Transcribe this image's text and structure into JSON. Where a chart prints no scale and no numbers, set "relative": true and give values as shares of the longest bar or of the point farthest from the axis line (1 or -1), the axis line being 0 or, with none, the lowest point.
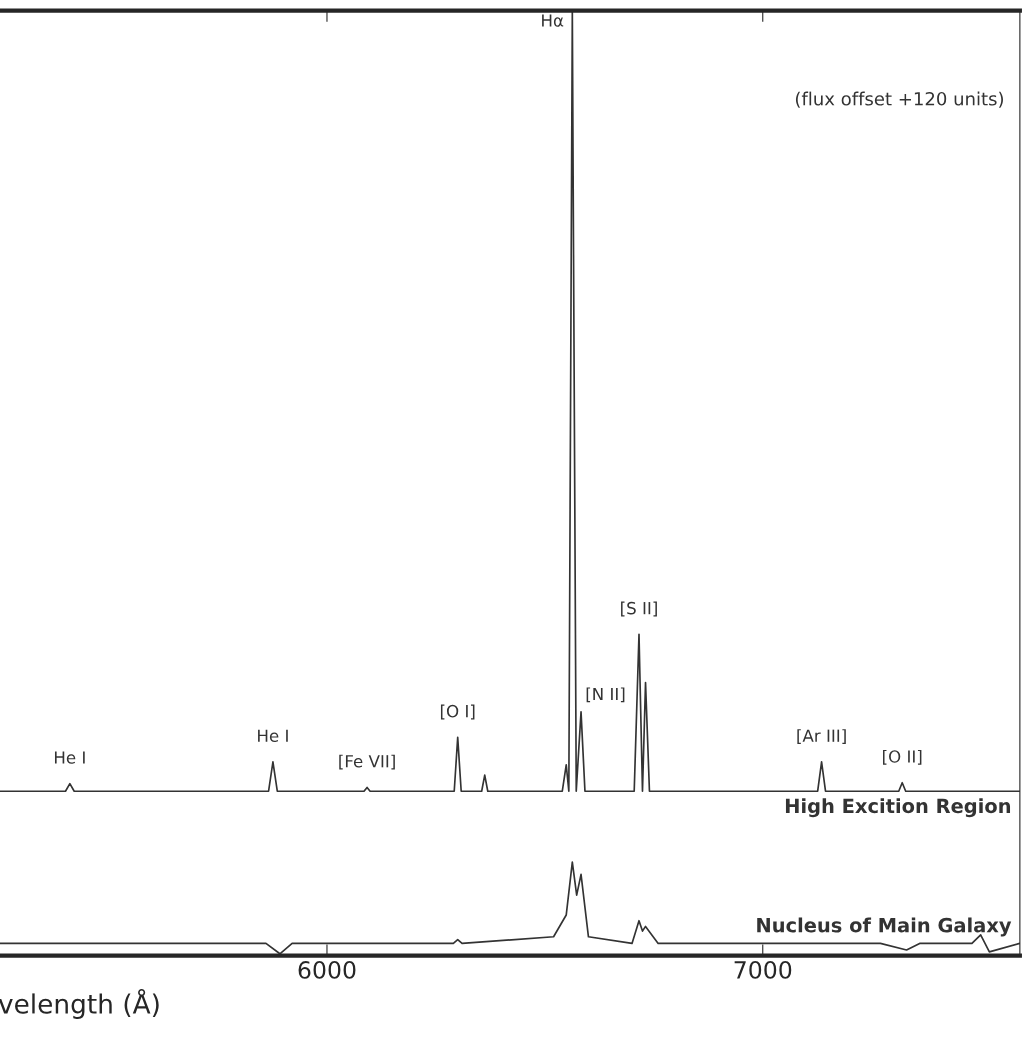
{
  "chart_data": {
    "type": "line",
    "relative": true,
    "xlabel": "velength (Å)",
    "xlim": [
      5245,
      7590
    ],
    "xticks": [
      6000,
      7000
    ],
    "grid": false,
    "legend": false,
    "line_style": "solid",
    "marker": "none",
    "series": [
      {
        "name": "High Excition Region",
        "color": "#333333",
        "x": [
          5245,
          5400,
          5410,
          5420,
          5700,
          5866,
          5876,
          5886,
          6085,
          6092,
          6099,
          6292,
          6300,
          6308,
          6355,
          6362,
          6369,
          6540,
          6549,
          6555,
          6563,
          6572,
          6583,
          6592,
          6705,
          6716,
          6724,
          6731,
          6740,
          7126,
          7135,
          7144,
          7312,
          7320,
          7328,
          7590
        ],
        "values": [
          0.174,
          0.174,
          0.182,
          0.174,
          0.174,
          0.174,
          0.205,
          0.174,
          0.174,
          0.178,
          0.174,
          0.174,
          0.231,
          0.174,
          0.174,
          0.191,
          0.174,
          0.174,
          0.202,
          0.174,
          1.0,
          0.174,
          0.258,
          0.174,
          0.174,
          0.34,
          0.174,
          0.289,
          0.174,
          0.174,
          0.205,
          0.174,
          0.174,
          0.183,
          0.174,
          0.174
        ]
      },
      {
        "name": "Nucleus of Main Galaxy",
        "color": "#333333",
        "x": [
          5245,
          5860,
          5892,
          5920,
          6290,
          6300,
          6310,
          6520,
          6549,
          6563,
          6573,
          6583,
          6600,
          6700,
          6716,
          6724,
          6731,
          6760,
          7000,
          7270,
          7330,
          7360,
          7480,
          7500,
          7520,
          7590
        ],
        "values": [
          0.013,
          0.013,
          0.002,
          0.013,
          0.013,
          0.017,
          0.013,
          0.02,
          0.043,
          0.099,
          0.064,
          0.086,
          0.02,
          0.013,
          0.037,
          0.026,
          0.031,
          0.013,
          0.013,
          0.013,
          0.006,
          0.013,
          0.013,
          0.022,
          0.004,
          0.013
        ]
      }
    ],
    "annotations": [
      "(flux offset +120 units)",
      {
        "text": "He I",
        "x": 5410,
        "y": 0.182
      },
      {
        "text": "He I",
        "x": 5876,
        "y": 0.205
      },
      {
        "text": "[Fe VII]",
        "x": 6092,
        "y": 0.178
      },
      {
        "text": "[O I]",
        "x": 6300,
        "y": 0.231
      },
      {
        "text": "Hα",
        "x": 6563,
        "y": 1.0
      },
      {
        "text": "[N II]",
        "x": 6583,
        "y": 0.258
      },
      {
        "text": "[S II]",
        "x": 6716,
        "y": 0.34
      },
      {
        "text": "[Ar III]",
        "x": 7135,
        "y": 0.205
      },
      {
        "text": "[O II]",
        "x": 7320,
        "y": 0.183
      }
    ]
  }
}
